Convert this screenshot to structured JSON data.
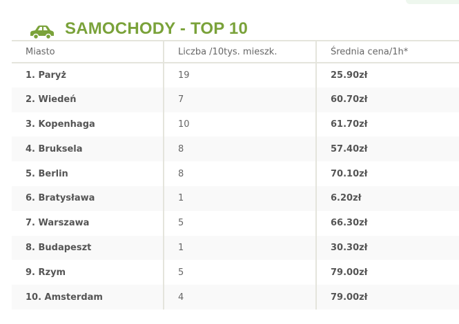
{
  "title": "SAMOCHODY - TOP 10",
  "icon": "car-icon",
  "accent": "#7aa23a",
  "headers": [
    "Miasto",
    "Liczba /10tys. mieszk.",
    "Średnia cena/1h*"
  ],
  "rows": [
    {
      "city": "1. Paryż",
      "count": "19",
      "price": "25.90zł"
    },
    {
      "city": "2. Wiedeń",
      "count": "7",
      "price": "60.70zł"
    },
    {
      "city": "3. Kopenhaga",
      "count": "10",
      "price": "61.70zł"
    },
    {
      "city": "4. Bruksela",
      "count": "8",
      "price": "57.40zł"
    },
    {
      "city": "5. Berlin",
      "count": "8",
      "price": "70.10zł"
    },
    {
      "city": "6. Bratysława",
      "count": "1",
      "price": "6.20zł"
    },
    {
      "city": "7. Warszawa",
      "count": "5",
      "price": "66.30zł"
    },
    {
      "city": "8. Budapeszt",
      "count": "1",
      "price": "30.30zł"
    },
    {
      "city": "9. Rzym",
      "count": "5",
      "price": "79.00zł"
    },
    {
      "city": "10. Amsterdam",
      "count": "4",
      "price": "79.00zł"
    }
  ]
}
